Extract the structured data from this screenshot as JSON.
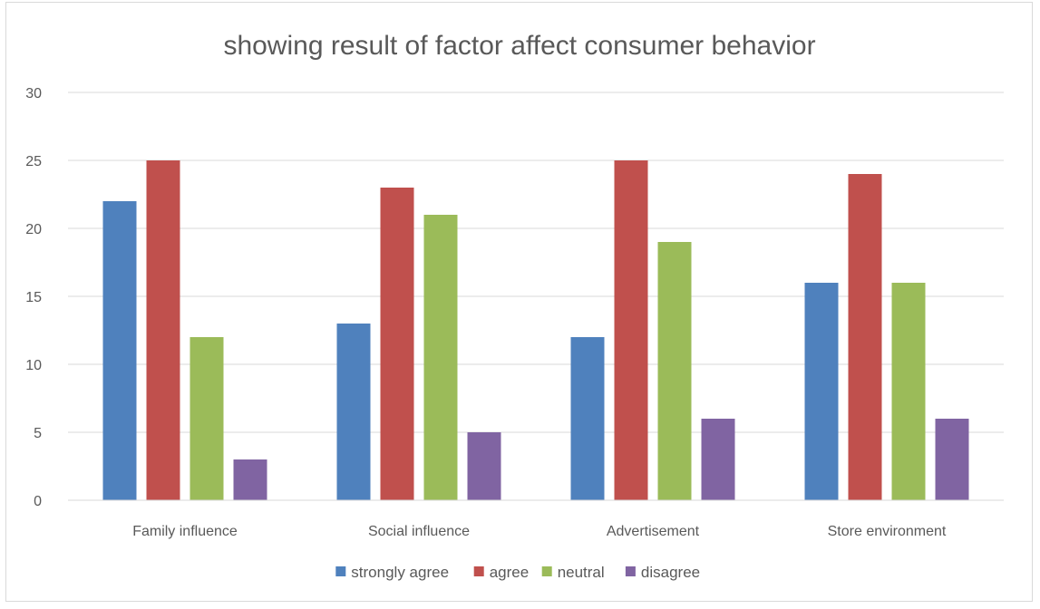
{
  "chart_data": {
    "type": "bar",
    "title": "showing result of factor affect consumer behavior",
    "categories": [
      "Family influence",
      "Social influence",
      "Advertisement",
      "Store environment"
    ],
    "series": [
      {
        "name": "strongly agree",
        "color": "#4f81bd",
        "values": [
          22,
          13,
          12,
          16
        ]
      },
      {
        "name": "agree",
        "color": "#c0504d",
        "values": [
          25,
          23,
          25,
          24
        ]
      },
      {
        "name": "neutral",
        "color": "#9bbb59",
        "values": [
          12,
          21,
          19,
          16
        ]
      },
      {
        "name": "disagree",
        "color": "#8064a2",
        "values": [
          3,
          5,
          6,
          6
        ]
      }
    ],
    "ylim": [
      0,
      30
    ],
    "yticks": [
      "0",
      "5",
      "10",
      "15",
      "20",
      "25",
      "30"
    ],
    "grid": true,
    "legend_position": "bottom"
  }
}
